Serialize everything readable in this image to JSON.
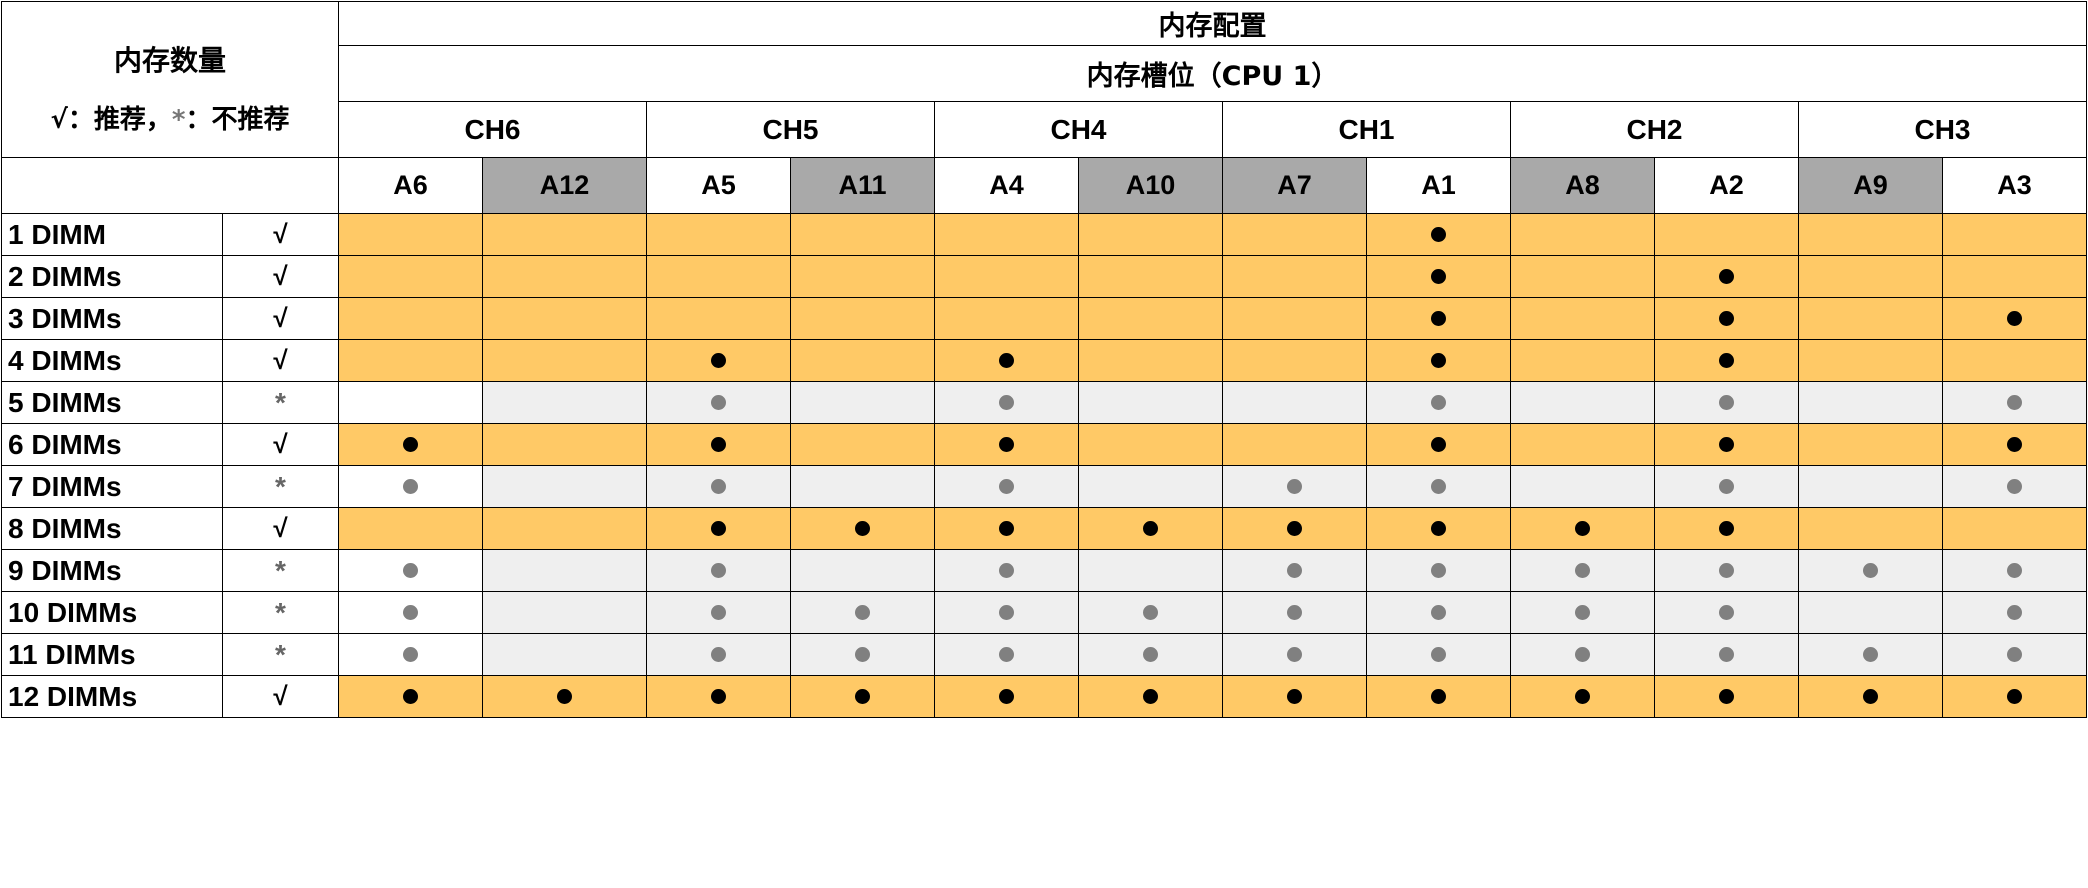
{
  "header": {
    "title": "内存配置",
    "subtitle": "内存槽位（CPU 1）",
    "qty_title": "内存数量",
    "legend_check": "√",
    "legend_check_text": "：推荐，",
    "legend_star": "*",
    "legend_star_text": "：不推荐"
  },
  "channels": [
    "CH6",
    "CH5",
    "CH4",
    "CH1",
    "CH2",
    "CH3"
  ],
  "slots": [
    {
      "name": "A6",
      "shade": "white"
    },
    {
      "name": "A12",
      "shade": "gray"
    },
    {
      "name": "A5",
      "shade": "white"
    },
    {
      "name": "A11",
      "shade": "gray"
    },
    {
      "name": "A4",
      "shade": "white"
    },
    {
      "name": "A10",
      "shade": "gray"
    },
    {
      "name": "A7",
      "shade": "gray"
    },
    {
      "name": "A1",
      "shade": "white"
    },
    {
      "name": "A8",
      "shade": "gray"
    },
    {
      "name": "A2",
      "shade": "white"
    },
    {
      "name": "A9",
      "shade": "gray"
    },
    {
      "name": "A3",
      "shade": "white"
    }
  ],
  "rows": [
    {
      "label": "1 DIMM",
      "mark": "√",
      "recommended": true,
      "filled": [
        0,
        0,
        0,
        0,
        0,
        0,
        0,
        1,
        0,
        0,
        0,
        0
      ]
    },
    {
      "label": "2 DIMMs",
      "mark": "√",
      "recommended": true,
      "filled": [
        0,
        0,
        0,
        0,
        0,
        0,
        0,
        1,
        0,
        1,
        0,
        0
      ]
    },
    {
      "label": "3 DIMMs",
      "mark": "√",
      "recommended": true,
      "filled": [
        0,
        0,
        0,
        0,
        0,
        0,
        0,
        1,
        0,
        1,
        0,
        1
      ]
    },
    {
      "label": "4 DIMMs",
      "mark": "√",
      "recommended": true,
      "filled": [
        0,
        0,
        1,
        0,
        1,
        0,
        0,
        1,
        0,
        1,
        0,
        0
      ]
    },
    {
      "label": "5 DIMMs",
      "mark": "*",
      "recommended": false,
      "filled": [
        0,
        0,
        1,
        0,
        1,
        0,
        0,
        1,
        0,
        1,
        0,
        1
      ]
    },
    {
      "label": "6 DIMMs",
      "mark": "√",
      "recommended": true,
      "filled": [
        1,
        0,
        1,
        0,
        1,
        0,
        0,
        1,
        0,
        1,
        0,
        1
      ]
    },
    {
      "label": "7 DIMMs",
      "mark": "*",
      "recommended": false,
      "filled": [
        1,
        0,
        1,
        0,
        1,
        0,
        1,
        1,
        0,
        1,
        0,
        1
      ]
    },
    {
      "label": "8 DIMMs",
      "mark": "√",
      "recommended": true,
      "filled": [
        0,
        0,
        1,
        1,
        1,
        1,
        1,
        1,
        1,
        1,
        0,
        0
      ]
    },
    {
      "label": "9 DIMMs",
      "mark": "*",
      "recommended": false,
      "filled": [
        1,
        0,
        1,
        0,
        1,
        0,
        1,
        1,
        1,
        1,
        1,
        1
      ]
    },
    {
      "label": "10 DIMMs",
      "mark": "*",
      "recommended": false,
      "filled": [
        1,
        0,
        1,
        1,
        1,
        1,
        1,
        1,
        1,
        1,
        0,
        1
      ]
    },
    {
      "label": "11 DIMMs",
      "mark": "*",
      "recommended": false,
      "filled": [
        1,
        0,
        1,
        1,
        1,
        1,
        1,
        1,
        1,
        1,
        1,
        1
      ]
    },
    {
      "label": "12 DIMMs",
      "mark": "√",
      "recommended": true,
      "filled": [
        1,
        1,
        1,
        1,
        1,
        1,
        1,
        1,
        1,
        1,
        1,
        1
      ]
    }
  ],
  "colors": {
    "recommended_fill": "#ffc966",
    "not_recommended_gray": "#efefef",
    "slot_header_gray": "#a9a9a9",
    "dot_recommended": "#000000",
    "dot_not_recommended": "#808080"
  }
}
